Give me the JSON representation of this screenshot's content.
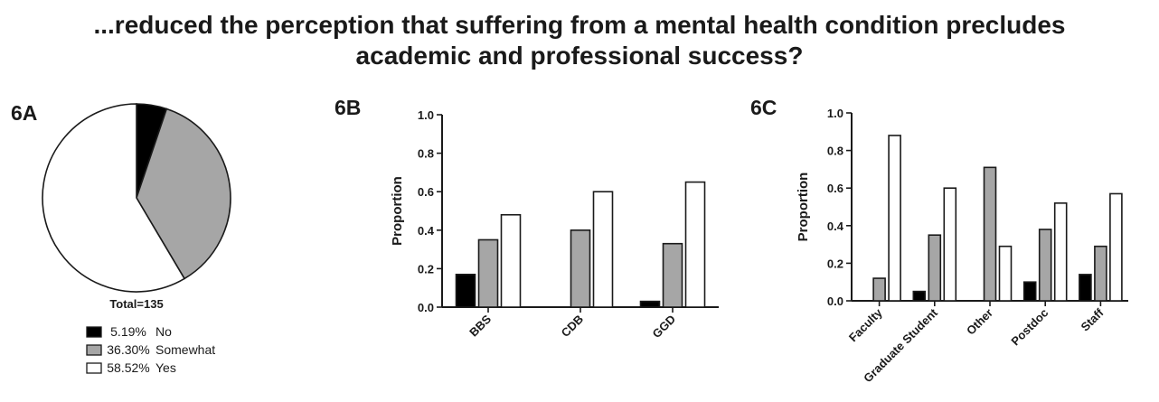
{
  "figure": {
    "title_line1": "...reduced the perception that suffering from a mental health condition precludes",
    "title_line2": "academic and professional success?"
  },
  "colors": {
    "no": "#000000",
    "somewhat": "#a6a6a6",
    "yes": "#ffffff",
    "stroke": "#1a1a1a"
  },
  "chart_data": [
    {
      "panel": "6A",
      "type": "pie",
      "total_label": "Total=135",
      "slices": [
        {
          "label": "No",
          "pct_label": "5.19%",
          "value": 5.19
        },
        {
          "label": "Somewhat",
          "pct_label": "36.30%",
          "value": 36.3
        },
        {
          "label": "Yes",
          "pct_label": "58.52%",
          "value": 58.52
        }
      ],
      "legend_position": "bottom"
    },
    {
      "panel": "6B",
      "type": "bar",
      "ylabel": "Proportion",
      "ylim": [
        0,
        1.0
      ],
      "yticks": [
        "0.0",
        "0.2",
        "0.4",
        "0.6",
        "0.8",
        "1.0"
      ],
      "categories": [
        "BBS",
        "CDB",
        "GGD"
      ],
      "series": [
        {
          "name": "No",
          "values": [
            0.17,
            0.0,
            0.03
          ]
        },
        {
          "name": "Somewhat",
          "values": [
            0.35,
            0.4,
            0.33
          ]
        },
        {
          "name": "Yes",
          "values": [
            0.48,
            0.6,
            0.65
          ]
        }
      ]
    },
    {
      "panel": "6C",
      "type": "bar",
      "ylabel": "Proportion",
      "ylim": [
        0,
        1.0
      ],
      "yticks": [
        "0.0",
        "0.2",
        "0.4",
        "0.6",
        "0.8",
        "1.0"
      ],
      "categories": [
        "Faculty",
        "Graduate Student",
        "Other",
        "Postdoc",
        "Staff"
      ],
      "series": [
        {
          "name": "No",
          "values": [
            0.0,
            0.05,
            0.0,
            0.1,
            0.14
          ]
        },
        {
          "name": "Somewhat",
          "values": [
            0.12,
            0.35,
            0.71,
            0.38,
            0.29
          ]
        },
        {
          "name": "Yes",
          "values": [
            0.88,
            0.6,
            0.29,
            0.52,
            0.57
          ]
        }
      ]
    }
  ]
}
